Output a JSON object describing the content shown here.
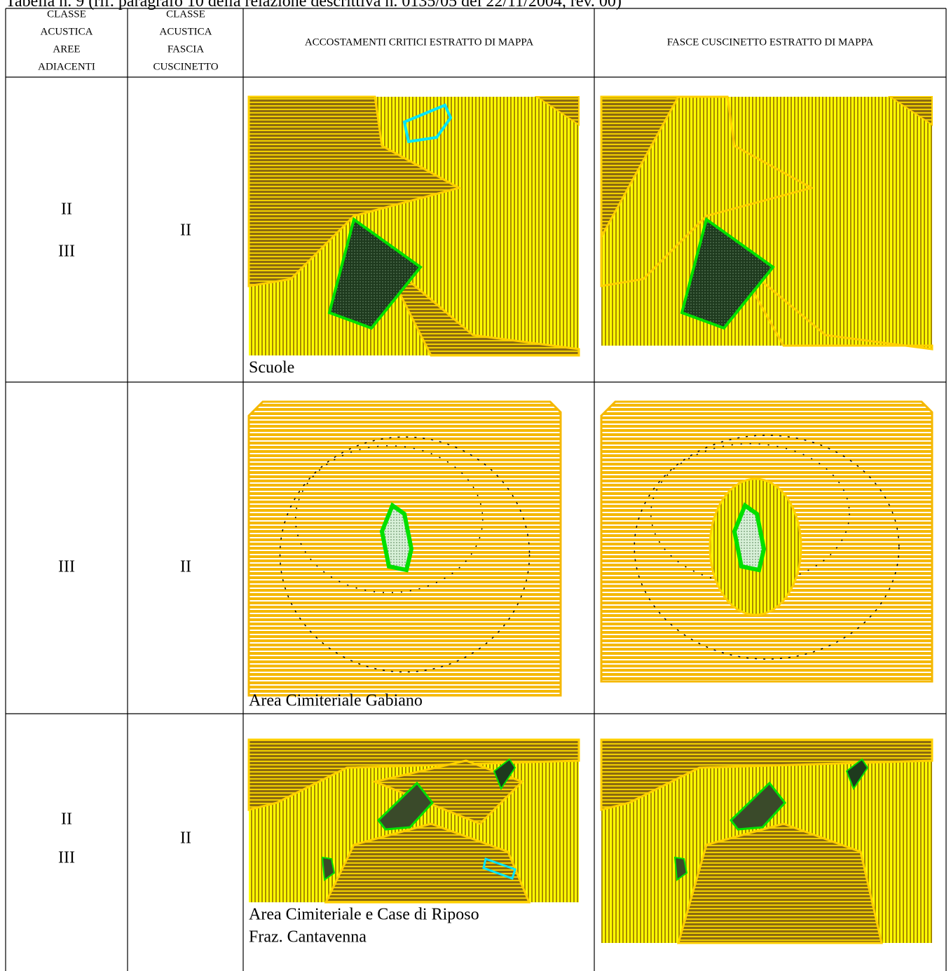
{
  "header": {
    "title": "Tabella n. 9 (rif. paragrafo 10 della relazione descrittiva n. 0135/05 del 22/11/2004, rev. 00)"
  },
  "table": {
    "headers": [
      [
        "CLASSE",
        "ACUSTICA",
        "AREE",
        "ADIACENTI"
      ],
      [
        "CLASSE",
        "ACUSTICA",
        "FASCIA",
        "CUSCINETTO"
      ],
      [
        "ACCOSTAMENTI CRITICI ESTRATTO DI MAPPA"
      ],
      [
        "FASCE CUSCINETTO ESTRATTO DI MAPPA"
      ]
    ],
    "rows": [
      {
        "adjacent_classes": [
          "II",
          "III"
        ],
        "buffer_class": "II",
        "caption": [
          "Scuole"
        ]
      },
      {
        "adjacent_classes": [
          "III"
        ],
        "buffer_class": "II",
        "caption": [
          "Area Cimiteriale Gabiano"
        ]
      },
      {
        "adjacent_classes": [
          "II",
          "III"
        ],
        "buffer_class": "II",
        "caption": [
          "Area Cimiteriale e Case di Riposo",
          "Fraz. Cantavenna"
        ]
      }
    ]
  }
}
